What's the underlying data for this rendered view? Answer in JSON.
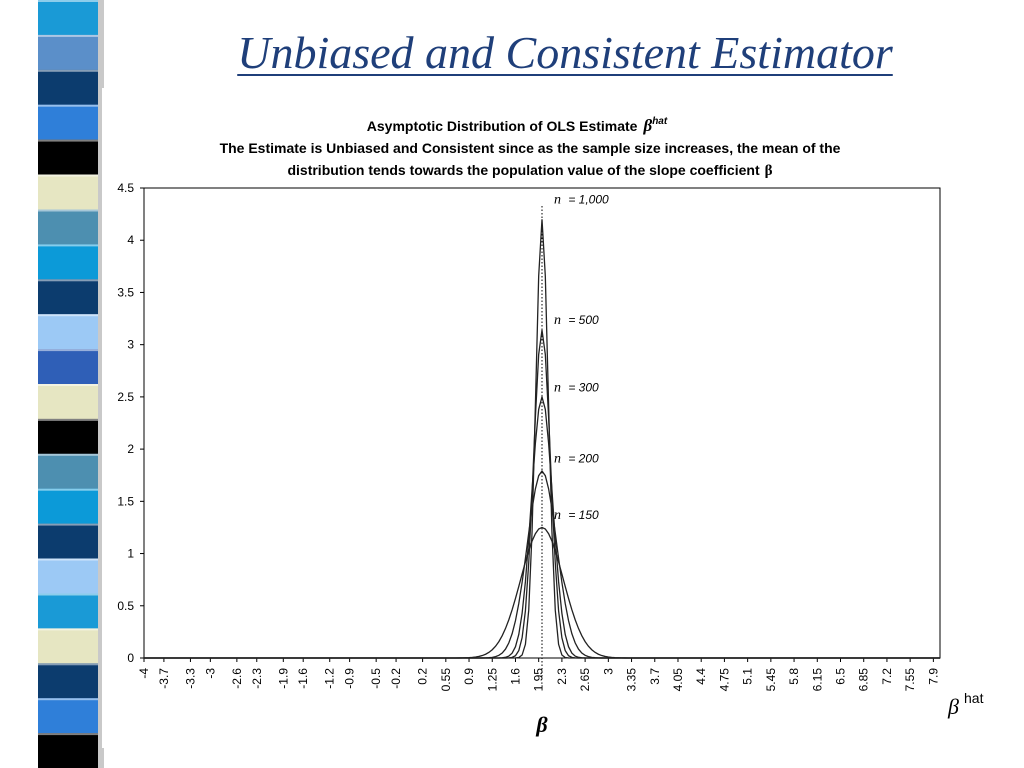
{
  "slide": {
    "title": "Unbiased and Consistent Estimator",
    "stripe_colors": [
      "#1a9ad6",
      "#5b8fc9",
      "#0c3c6e",
      "#2f7fd9",
      "#000000",
      "#e6e6c2",
      "#4d8fb0",
      "#0c9ad8",
      "#0c3c6e",
      "#9cc9f5",
      "#2f5fb7",
      "#e6e6c2",
      "#000000",
      "#4d8fb0",
      "#0c9ad8",
      "#0c3c6e",
      "#9cc9f5",
      "#1a9ad6",
      "#e6e6c2",
      "#0c3c6e",
      "#2f7fd9",
      "#000000"
    ]
  },
  "chart_data": {
    "type": "line",
    "title_line1": "Asymptotic Distribution of OLS Estimate",
    "title_line1_symbol": "β",
    "title_line1_sup": "hat",
    "title_line2": "The Estimate is Unbiased and Consistent since as the sample size increases, the mean of the",
    "title_line3": "distribution tends towards the population value of the slope coefficient",
    "title_line3_symbol": "β",
    "ylim": [
      0,
      4.5
    ],
    "y_ticks": [
      "0",
      "0.5",
      "1",
      "1.5",
      "2",
      "2.5",
      "3",
      "3.5",
      "4",
      "4.5"
    ],
    "xlim": [
      -4,
      8
    ],
    "x_ticks": [
      "-4",
      "-3.7",
      "-3.3",
      "-3",
      "-2.6",
      "-2.3",
      "-1.9",
      "-1.6",
      "-1.2",
      "-0.9",
      "-0.5",
      "-0.2",
      "0.2",
      "0.55",
      "0.9",
      "1.25",
      "1.6",
      "1.95",
      "2.3",
      "2.65",
      "3",
      "3.35",
      "3.7",
      "4.05",
      "4.4",
      "4.75",
      "5.1",
      "5.45",
      "5.8",
      "6.15",
      "6.5",
      "6.85",
      "7.2",
      "7.55",
      "7.9"
    ],
    "x_label_symbol": "β",
    "x_label_sup": "hat",
    "mean_marker_label": "β",
    "mean": 2.0,
    "series": [
      {
        "name_italic": "n",
        "name_rest": " = 1,000",
        "peak": 4.2,
        "label_y": 4.35
      },
      {
        "name_italic": "n",
        "name_rest": " = 500",
        "peak": 3.14,
        "label_y": 3.2
      },
      {
        "name_italic": "n",
        "name_rest": " = 300",
        "peak": 2.5,
        "label_y": 2.55
      },
      {
        "name_italic": "n",
        "name_rest": " = 200",
        "peak": 1.79,
        "label_y": 1.87
      },
      {
        "name_italic": "n",
        "name_rest": " = 150",
        "peak": 1.25,
        "label_y": 1.33
      }
    ],
    "grid": false,
    "legend": "inline-labels"
  }
}
